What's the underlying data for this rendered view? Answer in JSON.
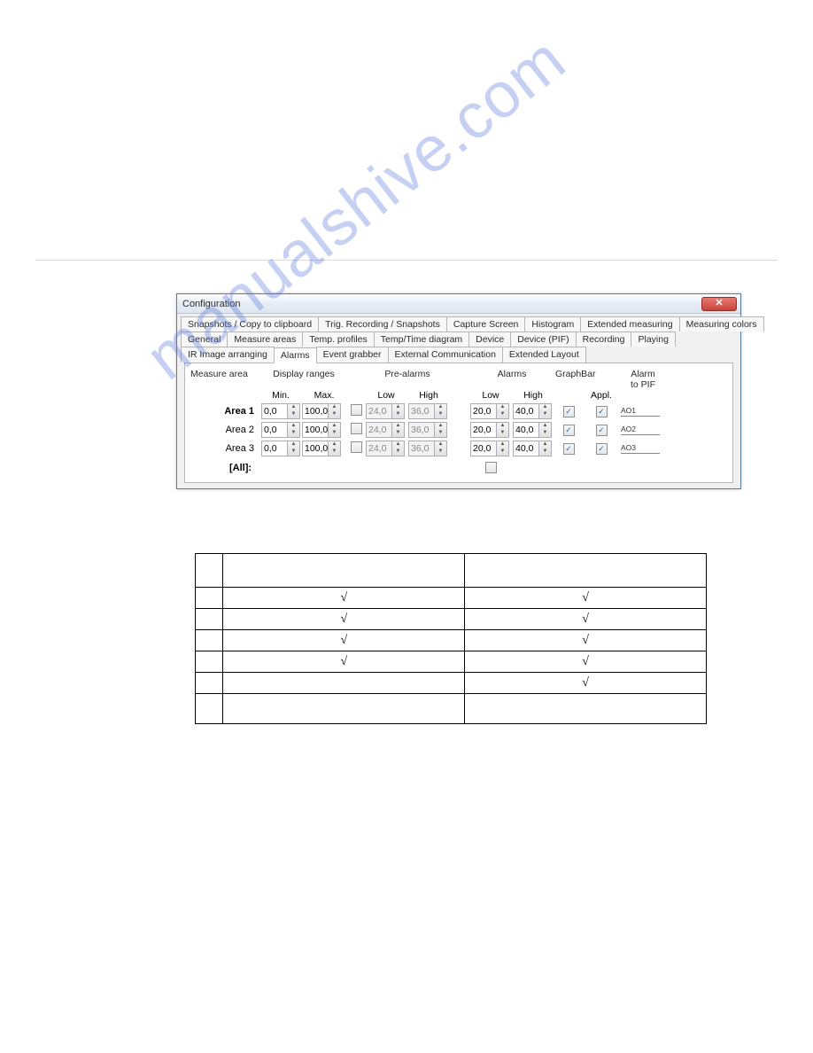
{
  "watermark_text": "manualshive.com",
  "window": {
    "title": "Configuration",
    "close_glyph": "✕"
  },
  "tabs_row1": [
    "Snapshots / Copy to clipboard",
    "Trig. Recording / Snapshots",
    "Capture Screen",
    "Histogram",
    "Extended measuring",
    "Measuring colors"
  ],
  "tabs_row2": [
    "General",
    "Measure areas",
    "Temp. profiles",
    "Temp/Time diagram",
    "Device",
    "Device (PIF)",
    "Recording",
    "Playing"
  ],
  "tabs_row3": [
    "IR Image arranging",
    "Alarms",
    "Event grabber",
    "External Communication",
    "Extended Layout"
  ],
  "active_tab": "Alarms",
  "columns": {
    "measure_area": "Measure area",
    "display_ranges": "Display ranges",
    "min": "Min.",
    "max": "Max.",
    "pre_alarms": "Pre-alarms",
    "alarms": "Alarms",
    "low": "Low",
    "high": "High",
    "graphbar": "GraphBar",
    "appl": "Appl.",
    "alarm_to_pif": "Alarm\nto PIF"
  },
  "rows": [
    {
      "label": "Area 1",
      "bold": true,
      "min": "0,0",
      "max": "100,0",
      "pre_enabled": false,
      "pre_low": "24,0",
      "pre_high": "36,0",
      "alarm_low": "20,0",
      "alarm_high": "40,0",
      "graphbar": true,
      "appl": true,
      "pif": "AO1"
    },
    {
      "label": "Area 2",
      "bold": false,
      "min": "0,0",
      "max": "100,0",
      "pre_enabled": false,
      "pre_low": "24,0",
      "pre_high": "36,0",
      "alarm_low": "20,0",
      "alarm_high": "40,0",
      "graphbar": true,
      "appl": true,
      "pif": "AO2"
    },
    {
      "label": "Area 3",
      "bold": false,
      "min": "0,0",
      "max": "100,0",
      "pre_enabled": false,
      "pre_low": "24,0",
      "pre_high": "36,0",
      "alarm_low": "20,0",
      "alarm_high": "40,0",
      "graphbar": true,
      "appl": true,
      "pif": "AO3"
    }
  ],
  "all_label": "[All]:",
  "check_glyph": "✓",
  "summary": {
    "check": "√",
    "rows": [
      [
        "",
        "",
        ""
      ],
      [
        "",
        "√",
        "√"
      ],
      [
        "",
        "√",
        "√"
      ],
      [
        "",
        "√",
        "√"
      ],
      [
        "",
        "√",
        "√"
      ],
      [
        "",
        "",
        "√"
      ],
      [
        "",
        "",
        ""
      ]
    ]
  }
}
